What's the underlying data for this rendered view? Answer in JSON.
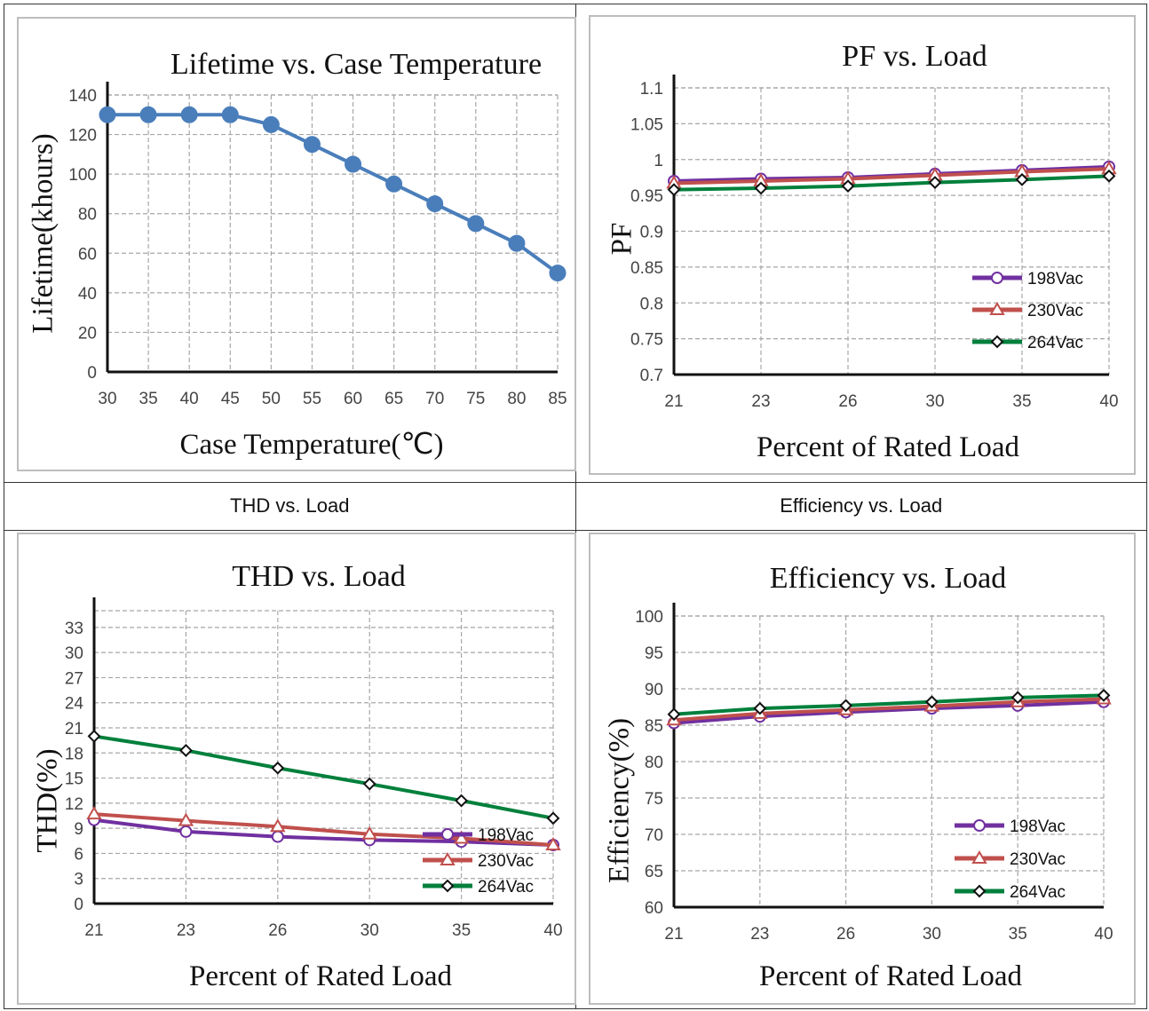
{
  "captions": [
    "THD vs. Load",
    "Efficiency vs. Load"
  ],
  "chart_data": [
    {
      "id": "lifetime",
      "type": "line",
      "title": "Lifetime vs. Case Temperature",
      "xlabel": "Case Temperature(℃)",
      "ylabel": "Lifetime(khours)",
      "categories": [
        "30",
        "35",
        "40",
        "45",
        "50",
        "55",
        "60",
        "65",
        "70",
        "75",
        "80",
        "85"
      ],
      "yticks": [
        "0",
        "20",
        "40",
        "60",
        "80",
        "100",
        "120",
        "140"
      ],
      "ylim": [
        0,
        140
      ],
      "grid": true,
      "legend": "none",
      "series": [
        {
          "values": [
            130,
            130,
            130,
            130,
            125,
            115,
            105,
            95,
            85,
            75,
            65,
            50
          ],
          "color": "#4a7ebb",
          "marker": "circle-filled"
        }
      ]
    },
    {
      "id": "pf",
      "type": "line",
      "title": "PF vs. Load",
      "xlabel": "Percent of Rated Load",
      "ylabel": "PF",
      "categories": [
        "21",
        "23",
        "26",
        "30",
        "35",
        "40"
      ],
      "yticks": [
        "0.7",
        "0.75",
        "0.8",
        "0.85",
        "0.9",
        "0.95",
        "1",
        "1.05",
        "1.1"
      ],
      "ylim": [
        0.7,
        1.1
      ],
      "grid": true,
      "legend": "bottom-right",
      "series": [
        {
          "name": "198Vac",
          "values": [
            0.97,
            0.973,
            0.975,
            0.98,
            0.985,
            0.99
          ],
          "color": "#7030a0",
          "marker": "circle"
        },
        {
          "name": "230Vac",
          "values": [
            0.967,
            0.97,
            0.973,
            0.978,
            0.983,
            0.987
          ],
          "color": "#c0504d",
          "marker": "triangle"
        },
        {
          "name": "264Vac",
          "values": [
            0.958,
            0.96,
            0.963,
            0.968,
            0.972,
            0.977
          ],
          "color": "#00803c",
          "marker": "diamond"
        }
      ]
    },
    {
      "id": "thd",
      "type": "line",
      "title": "THD vs. Load",
      "xlabel": "Percent of Rated Load",
      "ylabel": "THD(%)",
      "categories": [
        "21",
        "23",
        "26",
        "30",
        "35",
        "40"
      ],
      "yticks": [
        "0",
        "3",
        "6",
        "9",
        "12",
        "15",
        "18",
        "21",
        "24",
        "27",
        "30",
        "33"
      ],
      "ylim": [
        0,
        35
      ],
      "grid": true,
      "legend": "bottom-right",
      "series": [
        {
          "name": "198Vac",
          "values": [
            10.0,
            8.6,
            8.0,
            7.6,
            7.4,
            7.0
          ],
          "color": "#7030a0",
          "marker": "circle"
        },
        {
          "name": "230Vac",
          "values": [
            10.7,
            9.9,
            9.2,
            8.3,
            7.8,
            7.0
          ],
          "color": "#c0504d",
          "marker": "triangle"
        },
        {
          "name": "264Vac",
          "values": [
            20.0,
            18.3,
            16.2,
            14.3,
            12.3,
            10.2
          ],
          "color": "#00803c",
          "marker": "diamond"
        }
      ]
    },
    {
      "id": "eff",
      "type": "line",
      "title": "Efficiency vs. Load",
      "xlabel": "Percent of Rated Load",
      "ylabel": "Efficiency(%)",
      "categories": [
        "21",
        "23",
        "26",
        "30",
        "35",
        "40"
      ],
      "yticks": [
        "60",
        "65",
        "70",
        "75",
        "80",
        "85",
        "90",
        "95",
        "100"
      ],
      "ylim": [
        60,
        100
      ],
      "grid": true,
      "legend": "bottom-right",
      "series": [
        {
          "name": "198Vac",
          "values": [
            85.3,
            86.2,
            86.8,
            87.3,
            87.7,
            88.2
          ],
          "color": "#7030a0",
          "marker": "circle"
        },
        {
          "name": "230Vac",
          "values": [
            85.7,
            86.6,
            87.1,
            87.6,
            88.2,
            88.6
          ],
          "color": "#c0504d",
          "marker": "triangle"
        },
        {
          "name": "264Vac",
          "values": [
            86.5,
            87.3,
            87.7,
            88.2,
            88.8,
            89.1
          ],
          "color": "#00803c",
          "marker": "diamond"
        }
      ]
    }
  ]
}
